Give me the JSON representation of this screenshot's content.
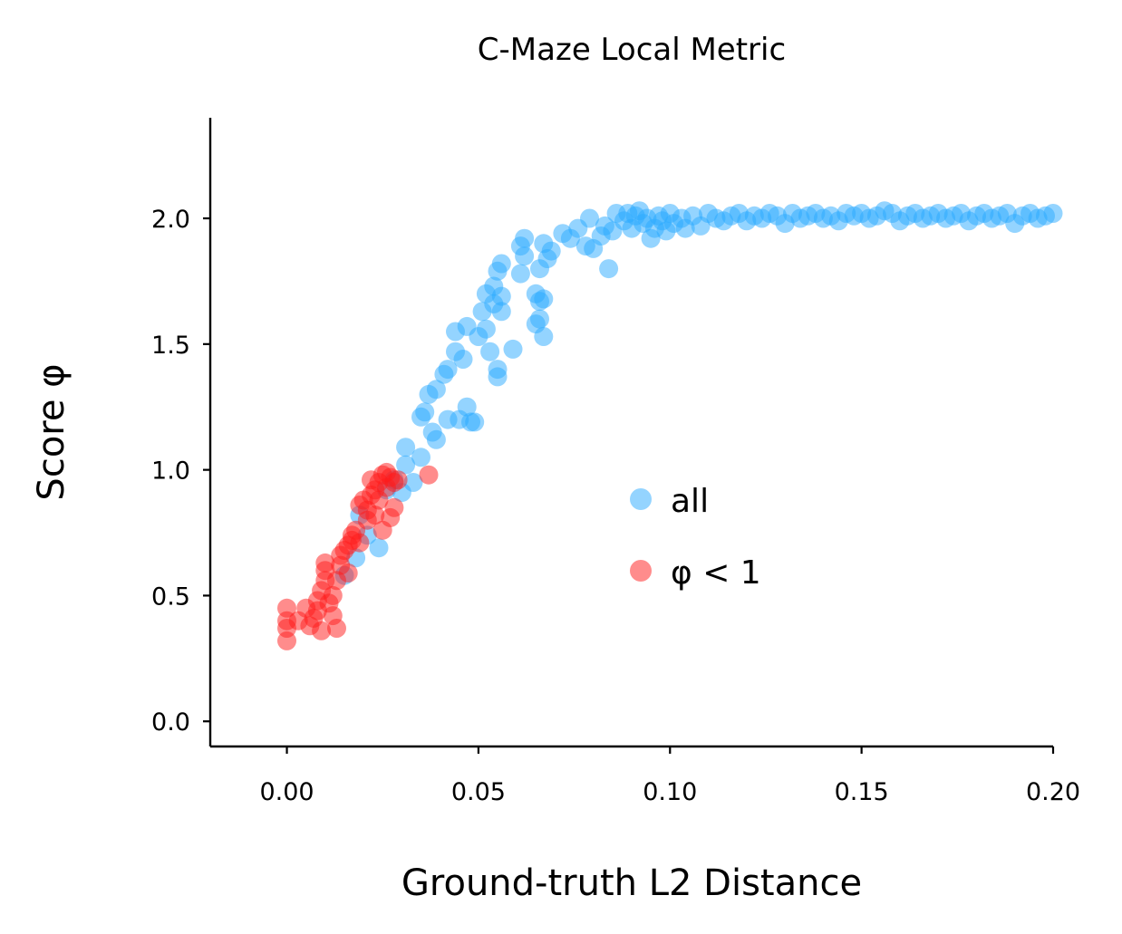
{
  "chart_data": {
    "type": "scatter",
    "title": "C-Maze Local Metric",
    "xlabel": "Ground-truth L2 Distance",
    "ylabel": "Score φ",
    "xlim": [
      -0.02,
      0.2
    ],
    "ylim": [
      -0.1,
      2.4
    ],
    "xticks": [
      "0.00",
      "0.05",
      "0.10",
      "0.15",
      "0.20"
    ],
    "yticks": [
      "0.0",
      "0.5",
      "1.0",
      "1.5",
      "2.0"
    ],
    "legend_position": "center-right",
    "grid": false,
    "series": [
      {
        "name": "all",
        "color": "#29a9ff",
        "opacity": 0.5,
        "points": [
          [
            0.015,
            0.58
          ],
          [
            0.018,
            0.65
          ],
          [
            0.019,
            0.82
          ],
          [
            0.021,
            0.74
          ],
          [
            0.024,
            0.69
          ],
          [
            0.026,
            0.92
          ],
          [
            0.028,
            0.96
          ],
          [
            0.03,
            0.91
          ],
          [
            0.031,
            1.02
          ],
          [
            0.031,
            1.09
          ],
          [
            0.033,
            0.95
          ],
          [
            0.035,
            1.05
          ],
          [
            0.035,
            1.21
          ],
          [
            0.036,
            1.23
          ],
          [
            0.037,
            1.3
          ],
          [
            0.038,
            1.15
          ],
          [
            0.039,
            1.12
          ],
          [
            0.039,
            1.32
          ],
          [
            0.041,
            1.38
          ],
          [
            0.042,
            1.4
          ],
          [
            0.042,
            1.2
          ],
          [
            0.044,
            1.47
          ],
          [
            0.044,
            1.55
          ],
          [
            0.045,
            1.2
          ],
          [
            0.046,
            1.44
          ],
          [
            0.047,
            1.25
          ],
          [
            0.047,
            1.57
          ],
          [
            0.048,
            1.19
          ],
          [
            0.049,
            1.19
          ],
          [
            0.05,
            1.53
          ],
          [
            0.051,
            1.63
          ],
          [
            0.052,
            1.7
          ],
          [
            0.052,
            1.56
          ],
          [
            0.053,
            1.47
          ],
          [
            0.054,
            1.73
          ],
          [
            0.054,
            1.66
          ],
          [
            0.055,
            1.79
          ],
          [
            0.055,
            1.37
          ],
          [
            0.055,
            1.4
          ],
          [
            0.056,
            1.82
          ],
          [
            0.056,
            1.69
          ],
          [
            0.056,
            1.63
          ],
          [
            0.059,
            1.48
          ],
          [
            0.061,
            1.78
          ],
          [
            0.061,
            1.89
          ],
          [
            0.062,
            1.92
          ],
          [
            0.062,
            1.85
          ],
          [
            0.065,
            1.58
          ],
          [
            0.065,
            1.7
          ],
          [
            0.066,
            1.6
          ],
          [
            0.066,
            1.67
          ],
          [
            0.066,
            1.8
          ],
          [
            0.067,
            1.68
          ],
          [
            0.067,
            1.53
          ],
          [
            0.067,
            1.9
          ],
          [
            0.068,
            1.84
          ],
          [
            0.069,
            1.87
          ],
          [
            0.072,
            1.94
          ],
          [
            0.074,
            1.92
          ],
          [
            0.076,
            1.96
          ],
          [
            0.078,
            1.89
          ],
          [
            0.079,
            2.0
          ],
          [
            0.08,
            1.88
          ],
          [
            0.082,
            1.93
          ],
          [
            0.083,
            1.97
          ],
          [
            0.084,
            1.8
          ],
          [
            0.085,
            1.95
          ],
          [
            0.086,
            2.02
          ],
          [
            0.088,
            1.99
          ],
          [
            0.089,
            2.02
          ],
          [
            0.09,
            1.96
          ],
          [
            0.091,
            2.01
          ],
          [
            0.092,
            2.03
          ],
          [
            0.093,
            1.98
          ],
          [
            0.094,
            2.0
          ],
          [
            0.095,
            1.92
          ],
          [
            0.096,
            1.96
          ],
          [
            0.097,
            2.01
          ],
          [
            0.098,
            1.99
          ],
          [
            0.099,
            1.95
          ],
          [
            0.1,
            2.02
          ],
          [
            0.101,
            1.98
          ],
          [
            0.103,
            2.0
          ],
          [
            0.104,
            1.96
          ],
          [
            0.106,
            2.01
          ],
          [
            0.108,
            1.97
          ],
          [
            0.11,
            2.02
          ],
          [
            0.112,
            2.0
          ],
          [
            0.114,
            1.99
          ],
          [
            0.116,
            2.01
          ],
          [
            0.118,
            2.02
          ],
          [
            0.12,
            1.99
          ],
          [
            0.122,
            2.01
          ],
          [
            0.124,
            2.0
          ],
          [
            0.126,
            2.02
          ],
          [
            0.128,
            2.01
          ],
          [
            0.13,
            1.98
          ],
          [
            0.132,
            2.02
          ],
          [
            0.134,
            2.0
          ],
          [
            0.136,
            2.01
          ],
          [
            0.138,
            2.02
          ],
          [
            0.14,
            2.0
          ],
          [
            0.142,
            2.01
          ],
          [
            0.144,
            1.99
          ],
          [
            0.146,
            2.02
          ],
          [
            0.148,
            2.01
          ],
          [
            0.15,
            2.02
          ],
          [
            0.152,
            2.0
          ],
          [
            0.154,
            2.01
          ],
          [
            0.156,
            2.03
          ],
          [
            0.158,
            2.02
          ],
          [
            0.16,
            1.99
          ],
          [
            0.162,
            2.01
          ],
          [
            0.164,
            2.02
          ],
          [
            0.166,
            2.0
          ],
          [
            0.168,
            2.01
          ],
          [
            0.17,
            2.02
          ],
          [
            0.172,
            2.0
          ],
          [
            0.174,
            2.01
          ],
          [
            0.176,
            2.02
          ],
          [
            0.178,
            1.99
          ],
          [
            0.18,
            2.01
          ],
          [
            0.182,
            2.02
          ],
          [
            0.184,
            2.0
          ],
          [
            0.186,
            2.01
          ],
          [
            0.188,
            2.02
          ],
          [
            0.19,
            1.98
          ],
          [
            0.192,
            2.01
          ],
          [
            0.194,
            2.02
          ],
          [
            0.196,
            2.0
          ],
          [
            0.198,
            2.01
          ],
          [
            0.2,
            2.02
          ]
        ]
      },
      {
        "name": "φ < 1",
        "color": "#ff1a1a",
        "opacity": 0.5,
        "points": [
          [
            0.0,
            0.32
          ],
          [
            0.0,
            0.37
          ],
          [
            0.0,
            0.4
          ],
          [
            0.0,
            0.45
          ],
          [
            0.003,
            0.4
          ],
          [
            0.005,
            0.45
          ],
          [
            0.006,
            0.38
          ],
          [
            0.007,
            0.41
          ],
          [
            0.008,
            0.44
          ],
          [
            0.008,
            0.48
          ],
          [
            0.009,
            0.36
          ],
          [
            0.009,
            0.52
          ],
          [
            0.01,
            0.56
          ],
          [
            0.01,
            0.6
          ],
          [
            0.01,
            0.63
          ],
          [
            0.011,
            0.47
          ],
          [
            0.012,
            0.42
          ],
          [
            0.012,
            0.5
          ],
          [
            0.013,
            0.37
          ],
          [
            0.013,
            0.56
          ],
          [
            0.014,
            0.62
          ],
          [
            0.014,
            0.66
          ],
          [
            0.015,
            0.68
          ],
          [
            0.016,
            0.7
          ],
          [
            0.016,
            0.59
          ],
          [
            0.017,
            0.72
          ],
          [
            0.017,
            0.74
          ],
          [
            0.018,
            0.76
          ],
          [
            0.019,
            0.71
          ],
          [
            0.019,
            0.86
          ],
          [
            0.02,
            0.88
          ],
          [
            0.021,
            0.8
          ],
          [
            0.021,
            0.84
          ],
          [
            0.022,
            0.9
          ],
          [
            0.022,
            0.96
          ],
          [
            0.023,
            0.82
          ],
          [
            0.023,
            0.92
          ],
          [
            0.024,
            0.95
          ],
          [
            0.024,
            0.88
          ],
          [
            0.025,
            0.98
          ],
          [
            0.025,
            0.76
          ],
          [
            0.026,
            0.99
          ],
          [
            0.026,
            0.93
          ],
          [
            0.027,
            0.97
          ],
          [
            0.027,
            0.81
          ],
          [
            0.028,
            0.85
          ],
          [
            0.028,
            0.95
          ],
          [
            0.029,
            0.96
          ],
          [
            0.037,
            0.98
          ]
        ]
      }
    ]
  }
}
